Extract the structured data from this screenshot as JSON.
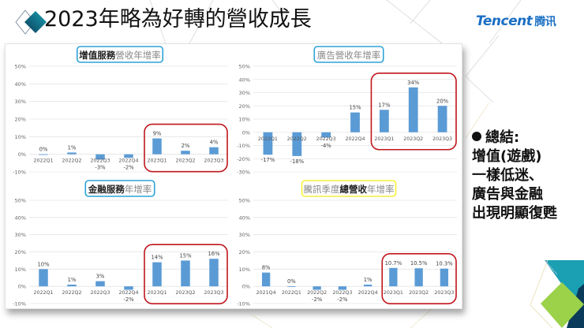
{
  "header": {
    "title": "2023年略為好轉的營收成長",
    "brand_en": "Tencent",
    "brand_cn": "腾讯"
  },
  "colors": {
    "bar": "#5b9bd5",
    "highlight_box": "#c0161c",
    "title_box_blue": "#2ea3d6",
    "title_box_yellow": "#f5f03a",
    "brand_blue": "#1a6fc4",
    "grid": "#e4e4e4"
  },
  "summary": {
    "bullet_title": "總結:",
    "lines": [
      "增值(遊戲)",
      "一樣低迷、",
      "廣告與金融",
      "出現明顯復甦"
    ]
  },
  "chart_data": [
    {
      "type": "bar",
      "title": "增值服務營收年增率",
      "title_bold": "增值服務",
      "title_rest": "營收年增率",
      "title_box": "blue",
      "categories": [
        "2022Q1",
        "2022Q2",
        "2022Q3",
        "2022Q4",
        "2023Q1",
        "2023Q2",
        "2023Q3"
      ],
      "values": [
        0,
        1,
        -3,
        -2,
        9,
        2,
        4
      ],
      "labels": [
        "0%",
        "1%",
        "-3%",
        "-2%",
        "9%",
        "2%",
        "4%"
      ],
      "yticks": [
        "50%",
        "40%",
        "30%",
        "20%",
        "10%",
        "0%",
        "-10%"
      ],
      "ylim": [
        -10,
        50
      ],
      "grid": true,
      "highlight": [
        "2023Q1",
        "2023Q2",
        "2023Q3"
      ]
    },
    {
      "type": "bar",
      "title": "廣告營收年增率",
      "title_bold": "",
      "title_rest": "廣告營收年增率",
      "title_box": "blue",
      "categories": [
        "2022Q1",
        "2022Q2",
        "2022Q3",
        "2022Q4",
        "2023Q1",
        "2023Q2",
        "2023Q3"
      ],
      "values": [
        -17,
        -18,
        -4,
        15,
        17,
        34,
        20
      ],
      "labels": [
        "-17%",
        "-18%",
        "-4%",
        "15%",
        "17%",
        "34%",
        "20%"
      ],
      "yticks": [
        "50%",
        "40%",
        "30%",
        "20%",
        "10%",
        "0%",
        "-10%",
        "-20%",
        "-30%"
      ],
      "ylim": [
        -30,
        50
      ],
      "grid": true,
      "highlight": [
        "2023Q1",
        "2023Q2",
        "2023Q3"
      ]
    },
    {
      "type": "bar",
      "title": "金融服務年增率",
      "title_bold": "金融服務",
      "title_rest": "年增率",
      "title_box": "blue",
      "categories": [
        "2022Q1",
        "2022Q2",
        "2022Q3",
        "2022Q4",
        "2023Q1",
        "2023Q2",
        "2023Q3"
      ],
      "values": [
        10,
        1,
        3,
        -2,
        14,
        15,
        16
      ],
      "labels": [
        "10%",
        "1%",
        "3%",
        "-2%",
        "14%",
        "15%",
        "16%"
      ],
      "yticks": [
        "50%",
        "40%",
        "30%",
        "20%",
        "10%",
        "0%",
        "-10%"
      ],
      "ylim": [
        -10,
        50
      ],
      "grid": true,
      "highlight": [
        "2023Q1",
        "2023Q2",
        "2023Q3"
      ]
    },
    {
      "type": "bar",
      "title": "騰訊季度總營收年增率",
      "title_pre": "騰訊季度",
      "title_bold": "總營收",
      "title_rest": "年增率",
      "title_box": "yellow",
      "categories": [
        "2021Q4",
        "2022Q1",
        "2022Q2",
        "2022Q3",
        "2022Q4",
        "2023Q1",
        "2023Q2",
        "2023Q3"
      ],
      "values": [
        8,
        0,
        -2,
        -2,
        1,
        10.7,
        10.5,
        10.3
      ],
      "labels": [
        "8%",
        "0%",
        "-2%",
        "-2%",
        "1%",
        "10.7%",
        "10.5%",
        "10.3%"
      ],
      "yticks": [
        "50%",
        "40%",
        "30%",
        "20%",
        "10%",
        "0%",
        "-10%"
      ],
      "ylim": [
        -10,
        50
      ],
      "grid": true,
      "highlight": [
        "2023Q1",
        "2023Q2",
        "2023Q3"
      ]
    }
  ]
}
